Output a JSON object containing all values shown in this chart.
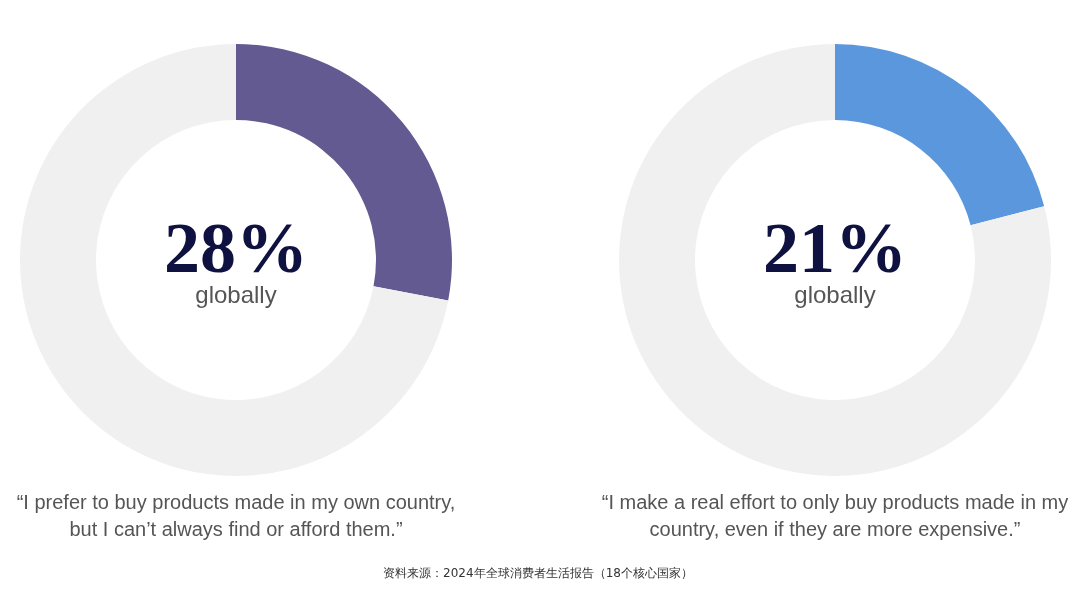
{
  "chart_data": [
    {
      "type": "donut",
      "categories": [
        null,
        null
      ],
      "values": [
        28,
        72
      ],
      "colors": [
        "#635a91",
        "#f0f0f0"
      ],
      "value_labels": [
        "28%",
        null
      ],
      "annotations": [
        "globally",
        "“I prefer to buy products made in my own country, but I can’t always find or afford them.”"
      ]
    },
    {
      "type": "donut",
      "categories": [
        null,
        null
      ],
      "values": [
        21,
        79
      ],
      "colors": [
        "#5b97dd",
        "#f0f0f0"
      ],
      "value_labels": [
        "21%",
        null
      ],
      "annotations": [
        "globally",
        "“I make a real effort to only buy products made in my country, even if they are more expensive.”",
        "资料来源：2024年全球消费者生活报告（18个核心国家）"
      ]
    }
  ]
}
